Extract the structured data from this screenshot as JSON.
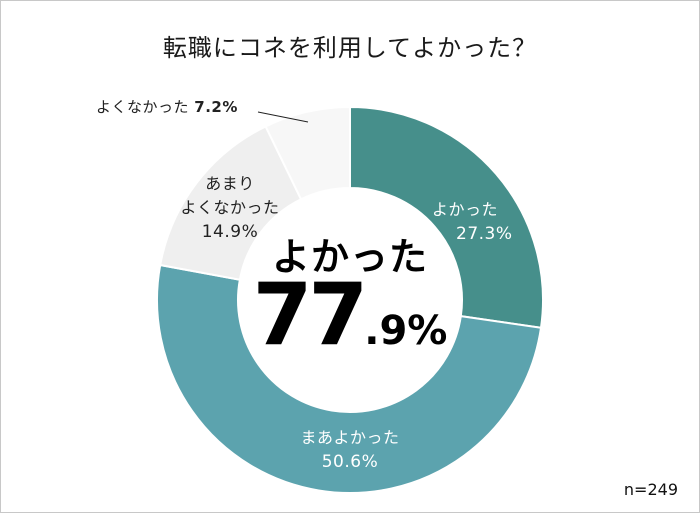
{
  "chart_data": {
    "type": "pie",
    "variant": "donut",
    "title": "転職にコネを利用してよかった？",
    "categories": [
      "よかった",
      "まあよかった",
      "あまりよくなかった",
      "よくなかった"
    ],
    "values": [
      27.3,
      50.6,
      14.9,
      7.2
    ],
    "unit": "%",
    "colors": [
      "#468f8b",
      "#5ca3ae",
      "#efefef",
      "#f7f7f7"
    ],
    "start_angle_deg": 0,
    "direction": "clockwise",
    "center_annotation": {
      "caption": "よかった",
      "value_integer": "77",
      "value_decimal": ".9%"
    },
    "sample_size": "n=249",
    "legend": "none (labels placed on segments)"
  },
  "title": "転職にコネを利用してよかった？",
  "labels": {
    "good": {
      "name": "よかった",
      "pct": "27.3%"
    },
    "ok": {
      "name": "まあよかった",
      "pct": "50.6%"
    },
    "notgood": {
      "line1": "あまり",
      "line2": "よくなかった",
      "pct": "14.9%"
    },
    "bad": {
      "name": "よくなかった",
      "pct": "7.2%"
    }
  },
  "center": {
    "caption": "よかった",
    "value_integer": "77",
    "value_decimal": ".9%"
  },
  "footer": {
    "sample_size": "n=249"
  }
}
